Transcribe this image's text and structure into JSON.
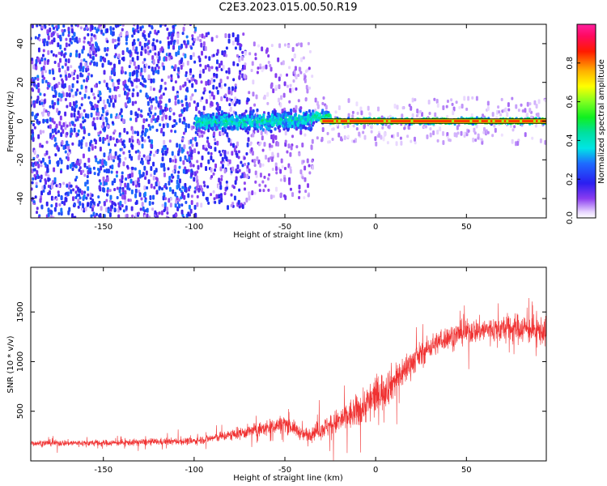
{
  "title": "C2E3.2023.015.00.50.R19",
  "chart_data": [
    {
      "type": "heatmap",
      "xlabel": "Height of straight line (km)",
      "ylabel": "Frequency (Hz)",
      "xlim": [
        -190,
        94
      ],
      "ylim": [
        -50,
        50
      ],
      "xticks": [
        -150,
        -100,
        -50,
        0,
        50
      ],
      "yticks": [
        -40,
        -20,
        0,
        20,
        40
      ],
      "colorbar": {
        "label": "Normalized spectral amplitude",
        "range": [
          0,
          1
        ],
        "ticks": [
          "0.0",
          "0.2",
          "0.4",
          "0.6",
          "0.8"
        ],
        "tick_values": [
          0.0,
          0.2,
          0.4,
          0.6,
          0.8
        ],
        "colormap": "gist_ncar-like (white, purple, blue, cyan, green, yellow, red, magenta)"
      },
      "description_regions": [
        {
          "x_range": [
            -190,
            -100
          ],
          "frequency_spread_hz": 50,
          "amplitude": [
            0.05,
            0.35
          ]
        },
        {
          "x_range": [
            -100,
            -35
          ],
          "frequency_spread_hz": 5,
          "amplitude": [
            0.2,
            0.5
          ]
        },
        {
          "x_range": [
            -30,
            94
          ],
          "frequency_spread_hz": 1,
          "amplitude": [
            0.8,
            0.95
          ]
        }
      ],
      "legend": "none",
      "grid": false
    },
    {
      "type": "line",
      "xlabel": "Height of straight line (km)",
      "ylabel": "SNR (10 * v/v)",
      "xlim": [
        -190,
        94
      ],
      "ylim": [
        0,
        1950
      ],
      "xticks": [
        -150,
        -100,
        -50,
        0,
        50
      ],
      "yticks": [
        500,
        1000,
        1500
      ],
      "color": "#f03232",
      "envelope": {
        "x": [
          -190,
          -150,
          -100,
          -80,
          -60,
          -50,
          -45,
          -40,
          -30,
          -20,
          -10,
          0,
          10,
          20,
          30,
          40,
          50,
          60,
          70,
          80,
          94
        ],
        "mean": [
          180,
          180,
          200,
          260,
          330,
          380,
          330,
          260,
          320,
          400,
          500,
          650,
          800,
          1000,
          1150,
          1250,
          1300,
          1320,
          1330,
          1340,
          1300
        ],
        "spread": [
          60,
          60,
          70,
          100,
          150,
          170,
          140,
          120,
          180,
          260,
          320,
          380,
          340,
          260,
          220,
          220,
          230,
          240,
          260,
          280,
          260
        ]
      },
      "legend": "none",
      "grid": false
    }
  ]
}
